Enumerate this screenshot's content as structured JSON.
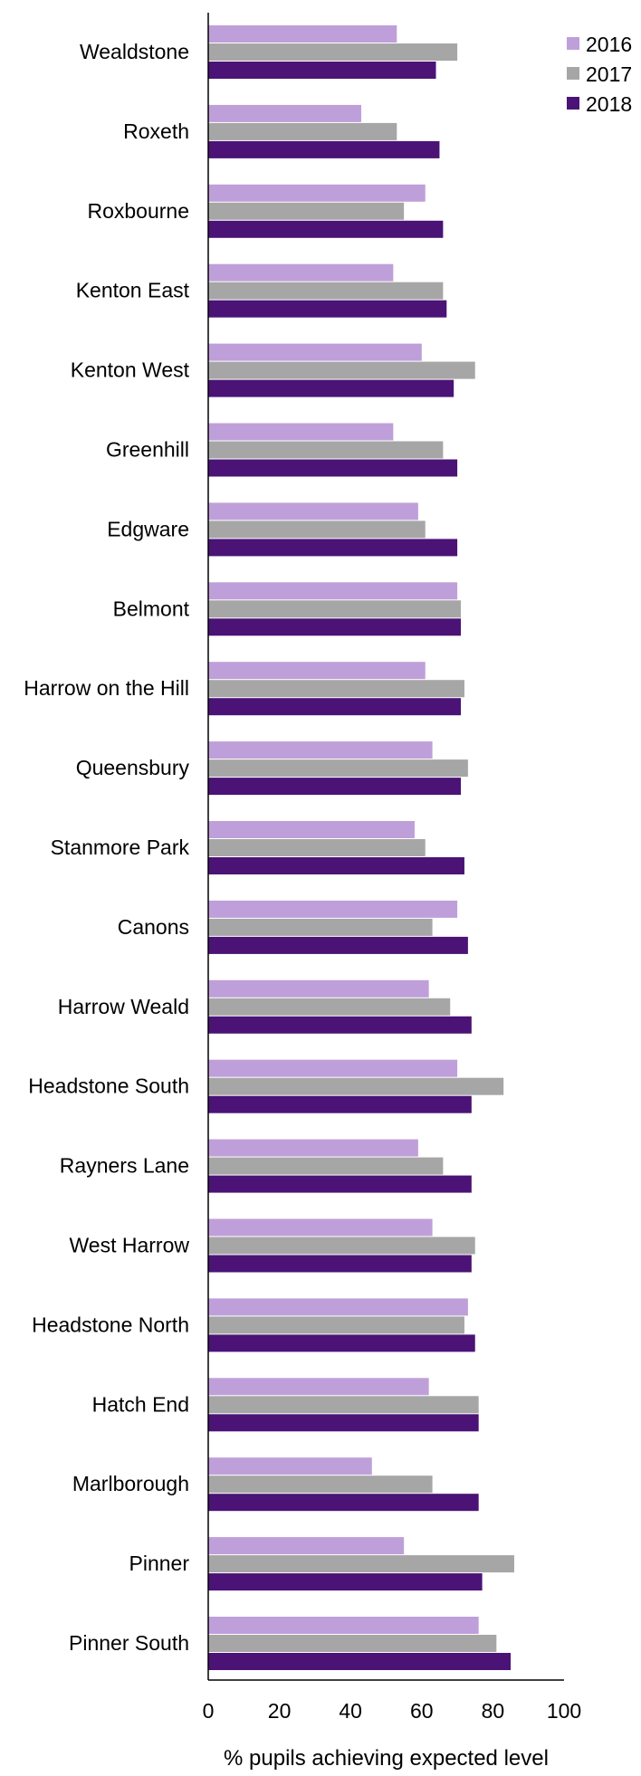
{
  "chart_data": {
    "type": "bar",
    "orientation": "horizontal",
    "xlabel": "% pupils achieving expected level",
    "ylabel": "",
    "xlim": [
      0,
      100
    ],
    "xticks": [
      "0",
      "20",
      "40",
      "60",
      "80",
      "100"
    ],
    "grid": false,
    "legend_position": "top-right",
    "categories": [
      "Wealdstone",
      "Roxeth",
      "Roxbourne",
      "Kenton East",
      "Kenton West",
      "Greenhill",
      "Edgware",
      "Belmont",
      "Harrow on the Hill",
      "Queensbury",
      "Stanmore Park",
      "Canons",
      "Harrow Weald",
      "Headstone South",
      "Rayners Lane",
      "West Harrow",
      "Headstone North",
      "Hatch End",
      "Marlborough",
      "Pinner",
      "Pinner South"
    ],
    "series": [
      {
        "name": "2016",
        "color": "#bf9fd9",
        "values": [
          53,
          43,
          61,
          52,
          60,
          52,
          59,
          70,
          61,
          63,
          58,
          70,
          62,
          70,
          59,
          63,
          73,
          62,
          46,
          55,
          76
        ]
      },
      {
        "name": "2017",
        "color": "#a6a6a6",
        "values": [
          70,
          53,
          55,
          66,
          75,
          66,
          61,
          71,
          72,
          73,
          61,
          63,
          68,
          83,
          66,
          75,
          72,
          76,
          63,
          86,
          81
        ]
      },
      {
        "name": "2018",
        "color": "#4b1376",
        "values": [
          64,
          65,
          66,
          67,
          69,
          70,
          70,
          71,
          71,
          71,
          72,
          73,
          74,
          74,
          74,
          74,
          75,
          76,
          76,
          77,
          85
        ]
      }
    ]
  }
}
